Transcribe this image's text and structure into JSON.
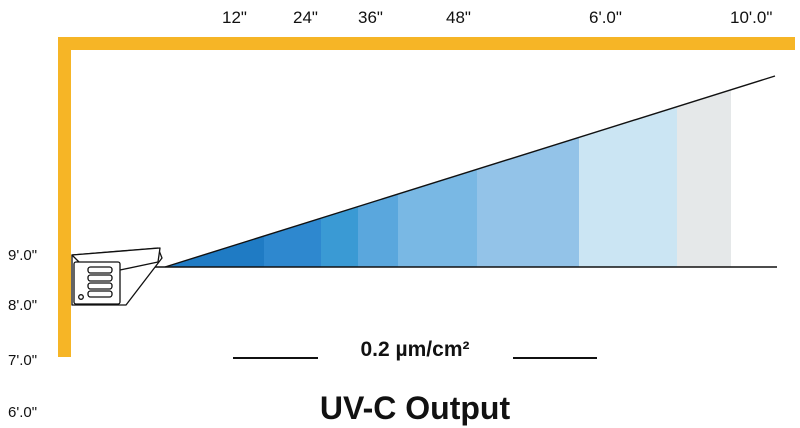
{
  "distance_labels": [
    "12\"",
    "24\"",
    "36\"",
    "48\"",
    "6'.0\"",
    "10'.0\""
  ],
  "height_labels": [
    "9'.0\"",
    "8'.0\"",
    "7'.0\"",
    "6'.0\""
  ],
  "dose_label": "0.2  µm/cm²",
  "title": "UV-C Output",
  "colors": {
    "ceiling_wall": "#f6b526",
    "zones": [
      "#1f7bc4",
      "#2e88cf",
      "#3a9ad4",
      "#5aa7dd",
      "#79b8e4",
      "#93c3e8",
      "#cbe5f3",
      "#e5e8e9"
    ]
  }
}
